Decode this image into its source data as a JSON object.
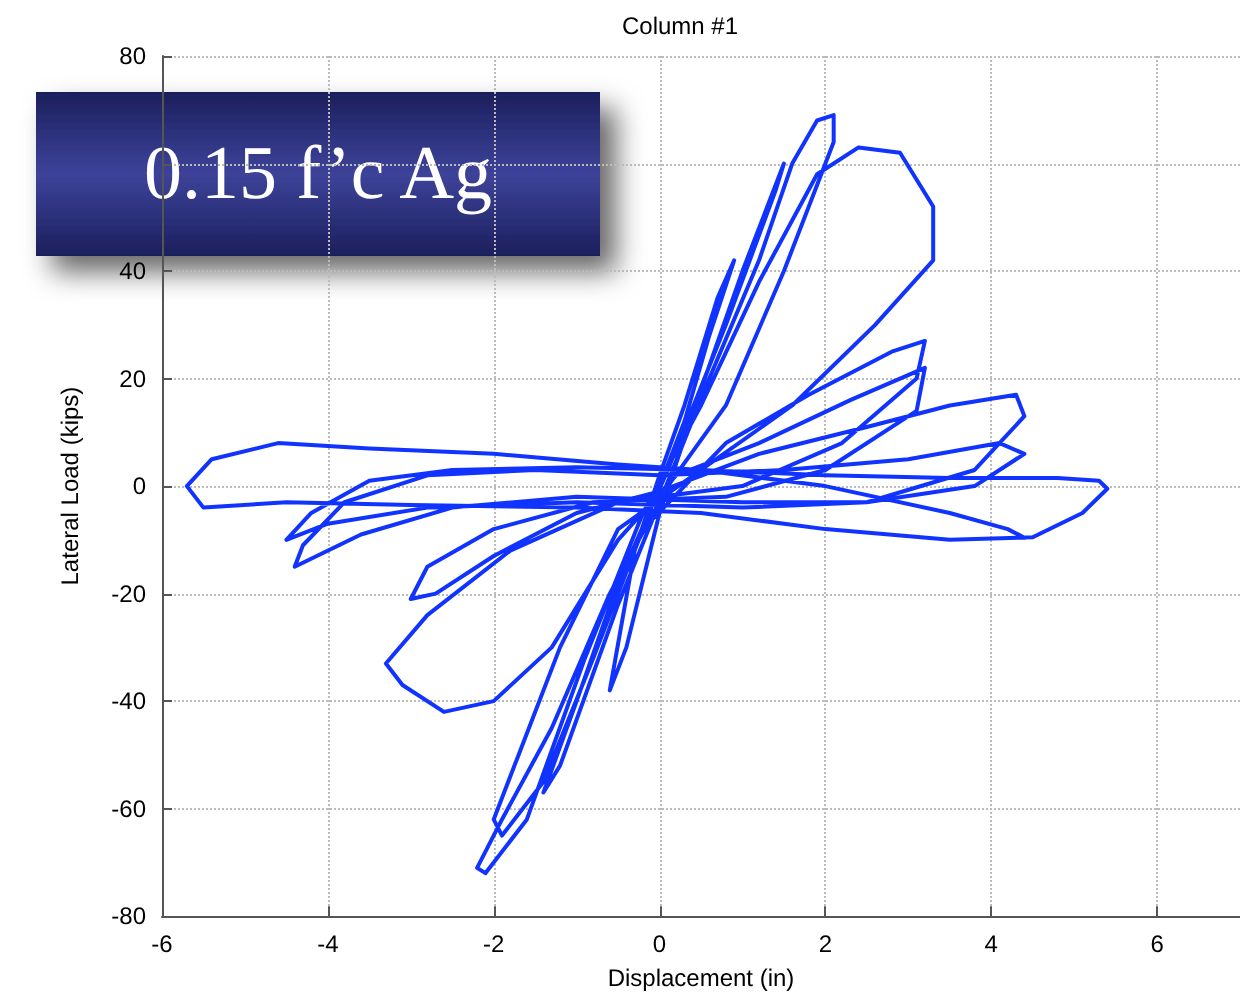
{
  "chart_data": {
    "type": "line",
    "title": "Column #1",
    "xlabel": "Displacement (in)",
    "ylabel": "Lateral Load (kips)",
    "annotations": [
      "0.15 f’c Ag"
    ],
    "xlim": [
      -6,
      7
    ],
    "xticks": [
      -6,
      -4,
      -2,
      0,
      2,
      4,
      6
    ],
    "ylim": [
      -80,
      80
    ],
    "yticks": [
      -80,
      -60,
      -40,
      -20,
      0,
      20,
      40,
      {
        "value": 60,
        "label": null
      },
      80
    ],
    "grid": true,
    "marker": "none",
    "line_style": "solid",
    "series": [
      {
        "color": "#1133ff",
        "x": [
          0,
          0.3,
          0.6,
          0.9,
          0.7,
          0.3,
          0,
          -0.3,
          -0.6,
          -0.4,
          0,
          0.5,
          1.0,
          1.5,
          1.4,
          0.8,
          0.1,
          -0.5,
          -1.0,
          -1.4,
          -1.2,
          -0.5,
          0,
          0.6,
          1.2,
          1.6,
          1.9,
          2.1,
          2.1,
          1.5,
          0.8,
          0.1,
          -0.6,
          -1.3,
          -1.9,
          -2.2,
          -2.1,
          -1.6,
          -0.9,
          -0.2,
          0.5,
          1.2,
          1.9,
          2.4,
          2.9,
          3.3,
          3.3,
          2.6,
          1.6,
          0.5,
          -0.5,
          -1.2,
          -1.7,
          -2.0,
          -1.9,
          -1.4,
          -0.8,
          -0.2,
          0.8,
          1.8,
          2.8,
          3.2,
          3.1,
          2.2,
          1.0,
          -0.5,
          -1.8,
          -2.8,
          -3.3,
          -3.1,
          -2.6,
          -2.0,
          -1.3,
          -0.5,
          0.2,
          1.2,
          2.3,
          3.2,
          3.1,
          2.0,
          0.8,
          -0.8,
          -2.0,
          -2.8,
          -3.0,
          -2.7,
          -2.0,
          -1.0,
          0,
          1.2,
          2.5,
          3.5,
          4.3,
          4.4,
          3.8,
          2.5,
          1.0,
          -1.0,
          -2.5,
          -3.6,
          -4.4,
          -4.3,
          -3.8,
          -2.8,
          -1.5,
          0,
          1.5,
          3.0,
          4.1,
          4.4,
          3.8,
          2.5,
          1.0,
          -1.0,
          -2.8,
          -4.0,
          -4.5,
          -4.2,
          -3.5,
          -2.5,
          -1.0,
          0.5,
          2.0,
          3.5,
          4.8,
          5.3,
          5.4,
          5.1,
          4.5,
          3.5,
          2.0,
          0.5,
          -1.0,
          -3.0,
          -4.5,
          -5.5,
          -5.7,
          -5.4,
          -4.6,
          -3.5,
          -2.0,
          -0.5,
          0.5,
          2.0,
          3.5,
          4.2,
          4.4
        ],
        "values": [
          0,
          12,
          28,
          42,
          35,
          15,
          2,
          -12,
          -38,
          -30,
          -5,
          18,
          40,
          60,
          55,
          30,
          3,
          -18,
          -40,
          -57,
          -52,
          -22,
          -3,
          20,
          42,
          60,
          68,
          69,
          64,
          40,
          15,
          0,
          -20,
          -45,
          -62,
          -71,
          -72,
          -62,
          -32,
          -5,
          15,
          38,
          58,
          63,
          62,
          52,
          42,
          30,
          15,
          3,
          -8,
          -30,
          -50,
          -62,
          -65,
          -55,
          -32,
          -8,
          8,
          17,
          25,
          27,
          20,
          8,
          0,
          -3,
          -12,
          -24,
          -33,
          -37,
          -42,
          -40,
          -30,
          -10,
          2,
          8,
          16,
          22,
          14,
          3,
          -2,
          -3,
          -8,
          -15,
          -21,
          -20,
          -13,
          -5,
          -1,
          6,
          11,
          15,
          17,
          13,
          3,
          -3,
          -3,
          -2,
          -4,
          -9,
          -15,
          -11,
          -3,
          2,
          3,
          2,
          3,
          5,
          8,
          6,
          0,
          -3,
          -4,
          -3,
          -4,
          -7,
          -10,
          -5,
          1,
          3,
          3.5,
          3,
          2,
          1.5,
          1.5,
          1,
          -0.5,
          -5,
          -9.5,
          -10,
          -8,
          -5,
          -4,
          -3.5,
          -3,
          -4,
          0,
          5,
          8,
          7,
          6,
          4,
          3,
          0,
          -5,
          -8,
          -9.6
        ]
      }
    ]
  }
}
